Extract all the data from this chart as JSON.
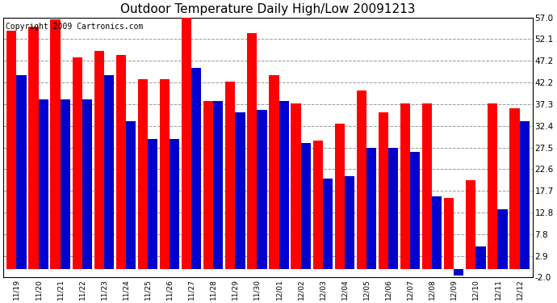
{
  "title": "Outdoor Temperature Daily High/Low 20091213",
  "copyright": "Copyright 2009 Cartronics.com",
  "dates": [
    "11/19",
    "11/20",
    "11/21",
    "11/22",
    "11/23",
    "11/24",
    "11/25",
    "11/26",
    "11/27",
    "11/28",
    "11/29",
    "11/30",
    "12/01",
    "12/02",
    "12/03",
    "12/04",
    "12/05",
    "12/06",
    "12/07",
    "12/08",
    "12/09",
    "12/10",
    "12/11",
    "12/12"
  ],
  "highs": [
    54.0,
    55.0,
    56.5,
    48.0,
    49.5,
    48.5,
    43.0,
    43.0,
    57.0,
    38.0,
    42.5,
    53.5,
    44.0,
    37.5,
    29.0,
    33.0,
    40.5,
    35.5,
    37.5,
    37.5,
    16.0,
    20.0,
    37.5,
    36.5
  ],
  "lows": [
    44.0,
    38.5,
    38.5,
    38.5,
    44.0,
    33.5,
    29.5,
    29.5,
    45.5,
    38.0,
    35.5,
    36.0,
    38.0,
    28.5,
    20.5,
    21.0,
    27.5,
    27.5,
    26.5,
    16.5,
    -1.5,
    5.0,
    13.5,
    33.5
  ],
  "high_color": "#ff0000",
  "low_color": "#0000cc",
  "bg_color": "#ffffff",
  "plot_bg_color": "#ffffff",
  "grid_color": "#999999",
  "yticks": [
    -2.0,
    2.9,
    7.8,
    12.8,
    17.7,
    22.6,
    27.5,
    32.4,
    37.3,
    42.2,
    47.2,
    52.1,
    57.0
  ],
  "ylim": [
    -2.0,
    57.0
  ],
  "title_fontsize": 11,
  "copyright_fontsize": 7,
  "tick_fontsize": 6.5,
  "ytick_fontsize": 7.5
}
